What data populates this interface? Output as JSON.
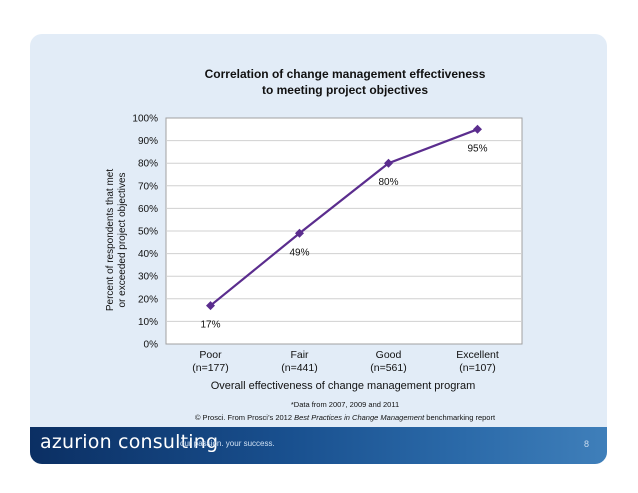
{
  "chart_data": {
    "type": "line",
    "title": [
      "Correlation of change management effectiveness",
      "to meeting project objectives"
    ],
    "categories": [
      {
        "name": "Poor",
        "n": "(n=177)"
      },
      {
        "name": "Fair",
        "n": "(n=441)"
      },
      {
        "name": "Good",
        "n": "(n=561)"
      },
      {
        "name": "Excellent",
        "n": "(n=107)"
      }
    ],
    "values": [
      17,
      49,
      80,
      95
    ],
    "data_labels": [
      "17%",
      "49%",
      "80%",
      "95%"
    ],
    "ylim": [
      0,
      100
    ],
    "yticks": [
      0,
      10,
      20,
      30,
      40,
      50,
      60,
      70,
      80,
      90,
      100
    ],
    "ylabel": [
      "Percent of respondents that met",
      "or exceeded project objectives"
    ],
    "xlabel": "Overall effectiveness of change management program",
    "grid": true,
    "series_color": "#5b2d8e"
  },
  "notes": {
    "data_note": "*Data from 2007, 2009 and 2011",
    "source_prefix": "© Prosci. From Prosci’s 2012 ",
    "source_title": "Best Practices in Change Management",
    "source_suffix": " benchmarking report"
  },
  "footer": {
    "brand": "azurion consulting",
    "tagline": "our passion. your success.",
    "page_number": "8"
  }
}
